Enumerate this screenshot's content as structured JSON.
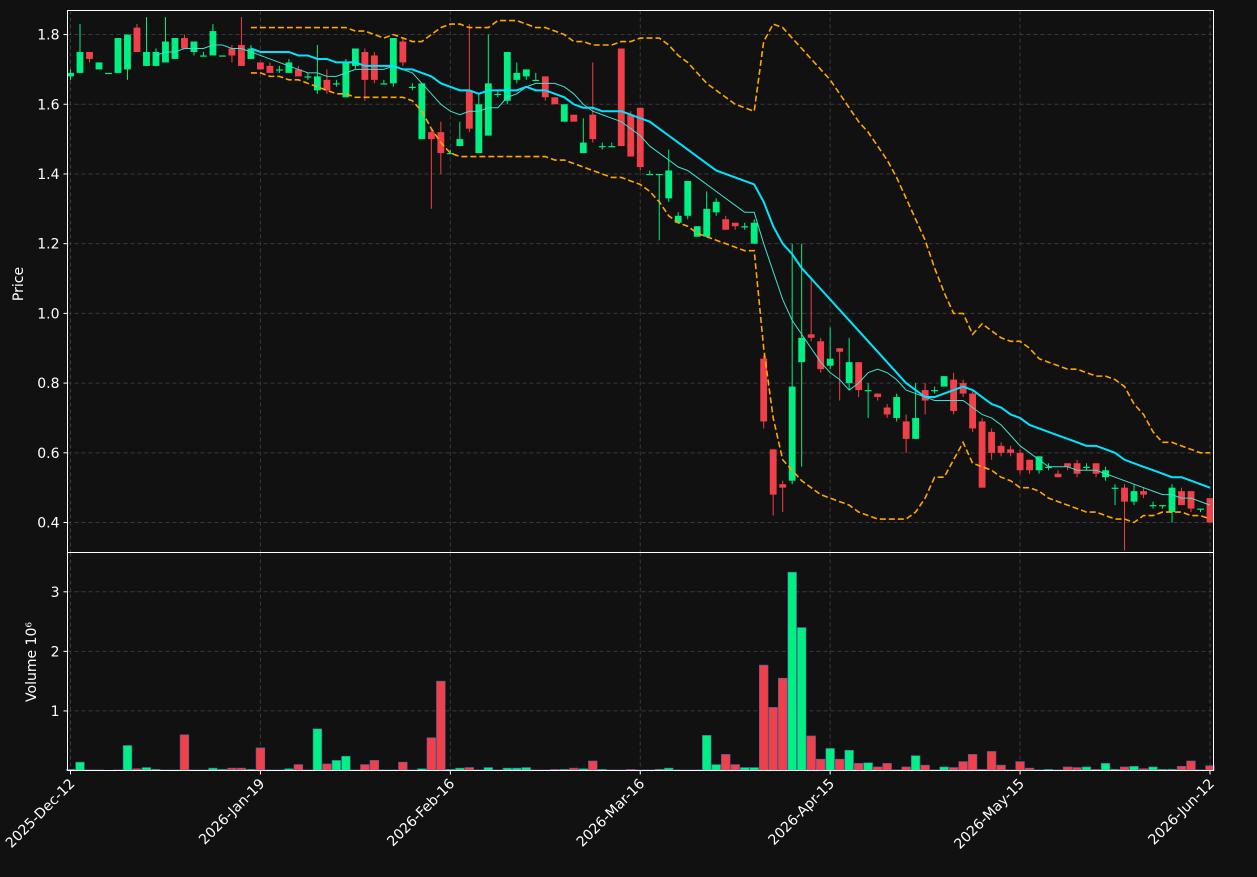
{
  "chart_data": {
    "type": "candlestick",
    "y_label": "Price",
    "volume_label": "Volume  10⁶",
    "up_color": "#00f084",
    "down_color": "#f0404a",
    "grid": true,
    "ylim": [
      0.314,
      1.869
    ],
    "yticks": [
      0.4,
      0.6,
      0.8,
      {
        "value": 1,
        "label": "1.0"
      },
      1.2,
      1.4,
      1.6,
      1.8
    ],
    "volume_ylim": [
      0,
      3.66
    ],
    "volume_yticks": [
      1,
      2,
      3
    ],
    "categories": [
      "2025-Dec-12",
      null,
      null,
      null,
      null,
      null,
      null,
      null,
      null,
      null,
      null,
      null,
      null,
      null,
      null,
      null,
      null,
      null,
      null,
      null,
      "2026-Jan-19",
      null,
      null,
      null,
      null,
      null,
      null,
      null,
      null,
      null,
      null,
      null,
      null,
      null,
      null,
      null,
      null,
      null,
      null,
      null,
      "2026-Feb-16",
      null,
      null,
      null,
      null,
      null,
      null,
      null,
      null,
      null,
      null,
      null,
      null,
      null,
      null,
      null,
      null,
      null,
      null,
      null,
      "2026-Mar-16",
      null,
      null,
      null,
      null,
      null,
      null,
      null,
      null,
      null,
      null,
      null,
      null,
      null,
      null,
      null,
      null,
      null,
      null,
      null,
      "2026-Apr-15",
      null,
      null,
      null,
      null,
      null,
      null,
      null,
      null,
      null,
      null,
      null,
      null,
      null,
      null,
      null,
      null,
      null,
      null,
      null,
      "2026-May-15",
      null,
      null,
      null,
      null,
      null,
      null,
      null,
      null,
      null,
      null,
      null,
      null,
      null,
      null,
      null,
      null,
      null,
      null,
      null,
      "2026-Jun-12"
    ],
    "open": [
      1.68,
      1.69,
      1.75,
      1.7,
      1.69,
      1.69,
      1.7,
      1.82,
      1.71,
      1.71,
      1.72,
      1.73,
      1.79,
      1.75,
      1.74,
      1.74,
      1.74,
      1.76,
      1.77,
      1.73,
      1.72,
      1.71,
      1.7,
      1.69,
      1.7,
      1.68,
      1.64,
      1.67,
      1.66,
      1.62,
      1.71,
      1.75,
      1.74,
      1.66,
      1.66,
      1.78,
      1.65,
      1.5,
      1.52,
      1.52,
      1.46,
      1.48,
      1.64,
      1.46,
      1.51,
      1.63,
      1.61,
      1.67,
      1.68,
      1.67,
      1.68,
      1.62,
      1.55,
      1.57,
      1.46,
      1.57,
      1.48,
      1.48,
      1.76,
      1.57,
      1.59,
      1.4,
      1.4,
      1.33,
      1.26,
      1.28,
      1.22,
      1.22,
      1.29,
      1.27,
      1.26,
      1.25,
      1.2,
      0.87,
      0.61,
      0.51,
      0.52,
      0.86,
      0.94,
      0.92,
      0.85,
      0.9,
      0.8,
      0.86,
      0.78,
      0.77,
      0.73,
      0.7,
      0.69,
      0.64,
      0.78,
      0.78,
      0.79,
      0.81,
      0.8,
      0.77,
      0.69,
      0.66,
      0.62,
      0.61,
      0.6,
      0.58,
      0.55,
      0.56,
      0.54,
      0.57,
      0.57,
      0.56,
      0.57,
      0.53,
      0.5,
      0.5,
      0.46,
      0.49,
      0.45,
      0.45,
      0.43,
      0.49,
      0.49,
      0.44,
      0.47
    ],
    "high": [
      1.7,
      1.83,
      1.75,
      1.72,
      1.69,
      1.79,
      1.8,
      1.83,
      1.85,
      1.76,
      1.85,
      1.79,
      1.8,
      1.78,
      1.75,
      1.83,
      1.74,
      1.77,
      1.85,
      1.77,
      1.72,
      1.72,
      1.71,
      1.73,
      1.71,
      1.69,
      1.77,
      1.7,
      1.67,
      1.73,
      1.76,
      1.76,
      1.75,
      1.67,
      1.79,
      1.79,
      1.66,
      1.66,
      1.53,
      1.55,
      1.47,
      1.55,
      1.83,
      1.63,
      1.8,
      1.64,
      1.75,
      1.72,
      1.7,
      1.69,
      1.68,
      1.62,
      1.6,
      1.57,
      1.56,
      1.72,
      1.49,
      1.49,
      1.76,
      1.58,
      1.59,
      1.41,
      1.4,
      1.47,
      1.29,
      1.38,
      1.25,
      1.35,
      1.33,
      1.28,
      1.26,
      1.26,
      1.27,
      0.88,
      0.61,
      0.52,
      1.2,
      1.2,
      1.1,
      0.93,
      0.96,
      0.9,
      0.93,
      0.86,
      0.8,
      0.77,
      0.74,
      0.77,
      0.71,
      0.8,
      0.8,
      0.79,
      0.82,
      0.83,
      0.81,
      0.78,
      0.7,
      0.67,
      0.63,
      0.62,
      0.61,
      0.58,
      0.59,
      0.57,
      0.55,
      0.57,
      0.58,
      0.57,
      0.57,
      0.56,
      0.51,
      0.51,
      0.51,
      0.5,
      0.46,
      0.45,
      0.51,
      0.5,
      0.49,
      0.44,
      0.47
    ],
    "low": [
      1.67,
      1.69,
      1.72,
      1.7,
      1.69,
      1.69,
      1.67,
      1.75,
      1.71,
      1.71,
      1.72,
      1.73,
      1.76,
      1.74,
      1.74,
      1.74,
      1.74,
      1.72,
      1.71,
      1.73,
      1.7,
      1.69,
      1.69,
      1.69,
      1.68,
      1.67,
      1.63,
      1.63,
      1.65,
      1.62,
      1.7,
      1.61,
      1.66,
      1.66,
      1.65,
      1.71,
      1.64,
      1.5,
      1.3,
      1.4,
      1.46,
      1.48,
      1.52,
      1.46,
      1.51,
      1.62,
      1.6,
      1.66,
      1.67,
      1.67,
      1.61,
      1.6,
      1.55,
      1.55,
      1.46,
      1.49,
      1.47,
      1.48,
      1.48,
      1.45,
      1.41,
      1.4,
      1.21,
      1.32,
      1.26,
      1.27,
      1.22,
      1.22,
      1.28,
      1.24,
      1.24,
      1.24,
      1.2,
      0.67,
      0.42,
      0.43,
      0.51,
      0.56,
      0.92,
      0.83,
      0.84,
      0.75,
      0.78,
      0.76,
      0.7,
      0.75,
      0.7,
      0.69,
      0.6,
      0.64,
      0.71,
      0.77,
      0.79,
      0.71,
      0.76,
      0.66,
      0.5,
      0.58,
      0.59,
      0.59,
      0.54,
      0.54,
      0.54,
      0.55,
      0.53,
      0.55,
      0.53,
      0.55,
      0.53,
      0.52,
      0.45,
      0.32,
      0.45,
      0.47,
      0.44,
      0.44,
      0.4,
      0.45,
      0.43,
      0.43,
      0.4
    ],
    "close": [
      1.69,
      1.75,
      1.73,
      1.72,
      1.69,
      1.79,
      1.8,
      1.75,
      1.75,
      1.75,
      1.78,
      1.79,
      1.76,
      1.78,
      1.74,
      1.81,
      1.74,
      1.74,
      1.71,
      1.76,
      1.7,
      1.69,
      1.7,
      1.72,
      1.68,
      1.68,
      1.68,
      1.64,
      1.66,
      1.72,
      1.76,
      1.67,
      1.67,
      1.66,
      1.79,
      1.72,
      1.65,
      1.66,
      1.5,
      1.46,
      1.46,
      1.5,
      1.53,
      1.6,
      1.66,
      1.63,
      1.75,
      1.69,
      1.7,
      1.67,
      1.62,
      1.6,
      1.6,
      1.55,
      1.49,
      1.5,
      1.48,
      1.48,
      1.48,
      1.45,
      1.42,
      1.4,
      1.4,
      1.41,
      1.28,
      1.38,
      1.25,
      1.3,
      1.32,
      1.24,
      1.25,
      1.25,
      1.26,
      0.69,
      0.48,
      0.5,
      0.79,
      0.93,
      0.93,
      0.84,
      0.87,
      0.89,
      0.86,
      0.78,
      0.78,
      0.76,
      0.71,
      0.76,
      0.64,
      0.7,
      0.75,
      0.78,
      0.82,
      0.72,
      0.77,
      0.67,
      0.5,
      0.6,
      0.6,
      0.6,
      0.55,
      0.55,
      0.59,
      0.56,
      0.53,
      0.56,
      0.54,
      0.56,
      0.54,
      0.55,
      0.5,
      0.46,
      0.49,
      0.48,
      0.45,
      0.45,
      0.5,
      0.45,
      0.44,
      0.44,
      0.4
    ],
    "volume": [
      0.02,
      0.14,
      0.01,
      0.01,
      0,
      0.01,
      0.42,
      0.03,
      0.05,
      0.02,
      0.01,
      0.01,
      0.6,
      0.01,
      0.01,
      0.04,
      0.02,
      0.04,
      0.04,
      0.02,
      0.38,
      0.01,
      0.01,
      0.03,
      0.1,
      0.01,
      0.7,
      0.11,
      0.17,
      0.24,
      0.01,
      0.1,
      0.17,
      0.01,
      0.01,
      0.14,
      0.01,
      0.03,
      0.55,
      1.5,
      0.02,
      0.04,
      0.05,
      0.01,
      0.05,
      0.01,
      0.04,
      0.04,
      0.05,
      0.01,
      0.01,
      0.02,
      0.02,
      0.04,
      0.03,
      0.16,
      0.02,
      0.01,
      0.01,
      0.02,
      0.01,
      0.01,
      0.02,
      0.04,
      0.01,
      0.01,
      0.01,
      0.59,
      0.1,
      0.27,
      0.1,
      0.05,
      0.05,
      1.77,
      1.06,
      1.55,
      3.33,
      2.4,
      0.58,
      0.19,
      0.37,
      0.19,
      0.34,
      0.12,
      0.13,
      0.06,
      0.12,
      0.01,
      0.06,
      0.25,
      0.09,
      0.01,
      0.06,
      0.05,
      0.15,
      0.27,
      0.02,
      0.32,
      0.09,
      0.01,
      0.15,
      0.04,
      0.01,
      0.02,
      0.01,
      0.06,
      0.05,
      0.06,
      0.02,
      0.12,
      0.02,
      0.06,
      0.07,
      0.03,
      0.06,
      0.02,
      0.02,
      0.07,
      0.16,
      0.01,
      0.08
    ],
    "overlays": [
      {
        "color": "#40e0d0",
        "width": 1,
        "dashed": false,
        "values": [
          null,
          null,
          null,
          null,
          null,
          null,
          null,
          null,
          null,
          1.74,
          1.75,
          1.75,
          1.76,
          1.76,
          1.76,
          1.77,
          1.77,
          1.76,
          1.76,
          1.75,
          1.74,
          1.73,
          1.72,
          1.71,
          1.7,
          1.69,
          1.69,
          1.68,
          1.68,
          1.69,
          1.7,
          1.7,
          1.7,
          1.7,
          1.71,
          1.7,
          1.69,
          1.66,
          1.63,
          1.6,
          1.58,
          1.57,
          1.58,
          1.58,
          1.59,
          1.59,
          1.62,
          1.63,
          1.65,
          1.66,
          1.66,
          1.66,
          1.65,
          1.63,
          1.6,
          1.58,
          1.57,
          1.56,
          1.55,
          1.53,
          1.51,
          1.48,
          1.46,
          1.44,
          1.42,
          1.41,
          1.39,
          1.37,
          1.35,
          1.33,
          1.31,
          1.29,
          1.29,
          1.2,
          1.12,
          1.04,
          0.98,
          0.94,
          0.9,
          0.86,
          0.83,
          0.81,
          0.78,
          0.8,
          0.83,
          0.84,
          0.83,
          0.81,
          0.78,
          0.77,
          0.76,
          0.75,
          0.75,
          0.75,
          0.75,
          0.73,
          0.71,
          0.7,
          0.68,
          0.65,
          0.62,
          0.6,
          0.58,
          0.56,
          0.56,
          0.56,
          0.55,
          0.55,
          0.55,
          0.54,
          0.53,
          0.52,
          0.51,
          0.5,
          0.49,
          0.48,
          0.48,
          0.47,
          0.47,
          0.46,
          0.45
        ]
      },
      {
        "color": "#00e5ff",
        "width": 2,
        "dashed": false,
        "values": [
          null,
          null,
          null,
          null,
          null,
          null,
          null,
          null,
          null,
          null,
          null,
          null,
          null,
          null,
          null,
          null,
          null,
          null,
          null,
          1.76,
          1.75,
          1.75,
          1.75,
          1.75,
          1.74,
          1.74,
          1.73,
          1.73,
          1.72,
          1.72,
          1.72,
          1.71,
          1.71,
          1.71,
          1.71,
          1.7,
          1.7,
          1.69,
          1.68,
          1.66,
          1.65,
          1.64,
          1.64,
          1.63,
          1.64,
          1.64,
          1.64,
          1.64,
          1.65,
          1.64,
          1.64,
          1.63,
          1.62,
          1.6,
          1.59,
          1.59,
          1.58,
          1.58,
          1.58,
          1.57,
          1.56,
          1.55,
          1.53,
          1.51,
          1.49,
          1.47,
          1.45,
          1.43,
          1.41,
          1.4,
          1.39,
          1.38,
          1.37,
          1.32,
          1.25,
          1.2,
          1.17,
          1.13,
          1.1,
          1.07,
          1.04,
          1.01,
          0.98,
          0.95,
          0.92,
          0.89,
          0.86,
          0.83,
          0.8,
          0.78,
          0.76,
          0.76,
          0.77,
          0.78,
          0.79,
          0.78,
          0.76,
          0.74,
          0.73,
          0.71,
          0.7,
          0.68,
          0.67,
          0.66,
          0.65,
          0.64,
          0.63,
          0.62,
          0.62,
          0.61,
          0.6,
          0.58,
          0.57,
          0.56,
          0.55,
          0.54,
          0.53,
          0.53,
          0.52,
          0.51,
          0.5
        ]
      },
      {
        "color": "#ffa500",
        "width": 1.6,
        "dashed": true,
        "values": [
          null,
          null,
          null,
          null,
          null,
          null,
          null,
          null,
          null,
          null,
          null,
          null,
          null,
          null,
          null,
          null,
          null,
          null,
          null,
          1.82,
          1.82,
          1.82,
          1.82,
          1.82,
          1.82,
          1.82,
          1.82,
          1.82,
          1.82,
          1.82,
          1.81,
          1.81,
          1.8,
          1.79,
          1.8,
          1.79,
          1.78,
          1.78,
          1.8,
          1.82,
          1.83,
          1.83,
          1.82,
          1.82,
          1.82,
          1.84,
          1.84,
          1.84,
          1.83,
          1.82,
          1.82,
          1.81,
          1.8,
          1.78,
          1.78,
          1.77,
          1.77,
          1.77,
          1.78,
          1.78,
          1.79,
          1.79,
          1.79,
          1.77,
          1.74,
          1.72,
          1.69,
          1.66,
          1.64,
          1.62,
          1.6,
          1.59,
          1.58,
          1.78,
          1.83,
          1.82,
          1.79,
          1.76,
          1.73,
          1.7,
          1.67,
          1.63,
          1.59,
          1.55,
          1.52,
          1.48,
          1.44,
          1.39,
          1.33,
          1.27,
          1.21,
          1.13,
          1.06,
          1.0,
          1.0,
          0.94,
          0.97,
          0.95,
          0.93,
          0.92,
          0.92,
          0.9,
          0.87,
          0.86,
          0.85,
          0.84,
          0.84,
          0.83,
          0.82,
          0.82,
          0.81,
          0.79,
          0.74,
          0.71,
          0.66,
          0.63,
          0.63,
          0.62,
          0.61,
          0.6,
          0.6
        ]
      },
      {
        "color": "#ffa500",
        "width": 1.6,
        "dashed": true,
        "values": [
          null,
          null,
          null,
          null,
          null,
          null,
          null,
          null,
          null,
          null,
          null,
          null,
          null,
          null,
          null,
          null,
          null,
          null,
          null,
          1.69,
          1.69,
          1.68,
          1.68,
          1.67,
          1.67,
          1.66,
          1.65,
          1.64,
          1.63,
          1.63,
          1.62,
          1.62,
          1.62,
          1.62,
          1.62,
          1.62,
          1.61,
          1.58,
          1.53,
          1.49,
          1.46,
          1.45,
          1.45,
          1.45,
          1.45,
          1.45,
          1.45,
          1.45,
          1.45,
          1.45,
          1.45,
          1.44,
          1.44,
          1.43,
          1.42,
          1.41,
          1.4,
          1.39,
          1.39,
          1.38,
          1.37,
          1.35,
          1.32,
          1.28,
          1.26,
          1.25,
          1.23,
          1.22,
          1.21,
          1.2,
          1.19,
          1.18,
          1.18,
          0.9,
          0.7,
          0.58,
          0.55,
          0.52,
          0.5,
          0.48,
          0.47,
          0.46,
          0.45,
          0.43,
          0.42,
          0.41,
          0.41,
          0.41,
          0.41,
          0.43,
          0.47,
          0.53,
          0.53,
          0.58,
          0.63,
          0.57,
          0.56,
          0.55,
          0.53,
          0.52,
          0.5,
          0.5,
          0.49,
          0.47,
          0.46,
          0.45,
          0.44,
          0.43,
          0.43,
          0.42,
          0.41,
          0.41,
          0.4,
          0.42,
          0.42,
          0.43,
          0.43,
          0.43,
          0.42,
          0.42,
          0.41
        ]
      }
    ]
  }
}
